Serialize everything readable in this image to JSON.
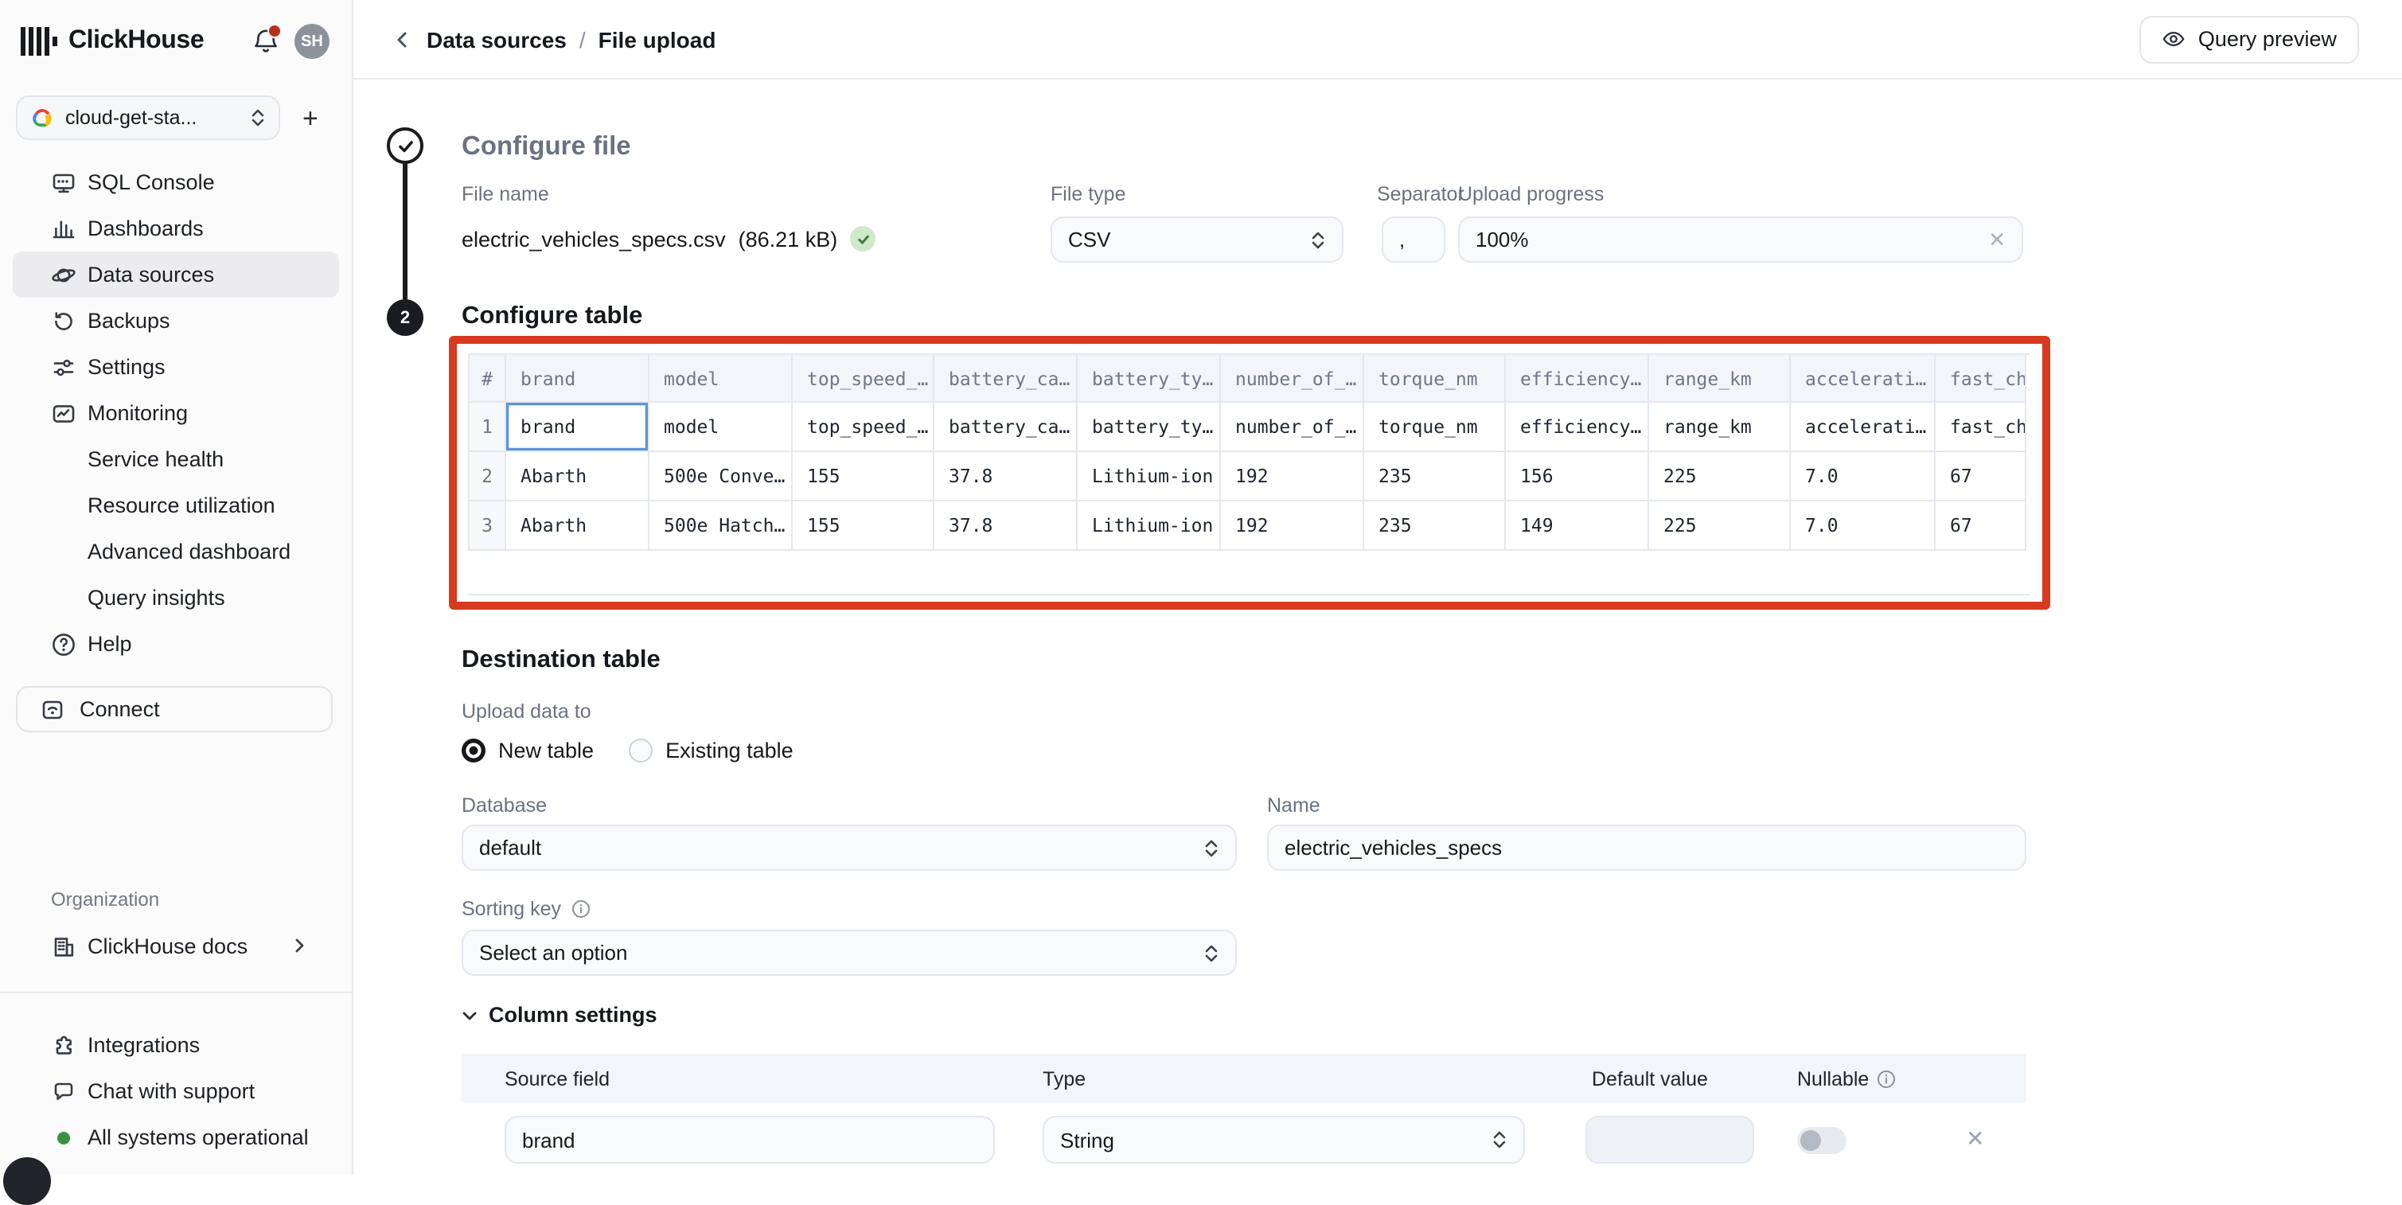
{
  "sidebar": {
    "brand": "ClickHouse",
    "avatar_initials": "SH",
    "org_selector": {
      "value": "cloud-get-sta...",
      "add_label": "+"
    },
    "nav": [
      {
        "label": "SQL Console",
        "icon": "sql-console"
      },
      {
        "label": "Dashboards",
        "icon": "dashboards"
      },
      {
        "label": "Data sources",
        "icon": "data-sources",
        "active": true
      },
      {
        "label": "Backups",
        "icon": "backups"
      },
      {
        "label": "Settings",
        "icon": "settings"
      },
      {
        "label": "Monitoring",
        "icon": "monitoring"
      },
      {
        "label": "Service health",
        "indent": true
      },
      {
        "label": "Resource utilization",
        "indent": true
      },
      {
        "label": "Advanced dashboard",
        "indent": true
      },
      {
        "label": "Query insights",
        "indent": true
      },
      {
        "label": "Help",
        "icon": "help"
      }
    ],
    "connect_label": "Connect",
    "organization_label": "Organization",
    "docs_label": "ClickHouse docs",
    "footer": [
      {
        "label": "Integrations",
        "icon": "integrations"
      },
      {
        "label": "Chat with support",
        "icon": "chat"
      },
      {
        "label": "All systems operational",
        "icon": "status-dot"
      }
    ]
  },
  "header": {
    "breadcrumb_parent": "Data sources",
    "breadcrumb_sep": "/",
    "breadcrumb_current": "File upload",
    "query_preview_label": "Query preview"
  },
  "configure_file": {
    "title": "Configure file",
    "file_name_label": "File name",
    "file_name_value": "electric_vehicles_specs.csv",
    "file_size": "(86.21 kB)",
    "file_type_label": "File type",
    "file_type_value": "CSV",
    "separator_label": "Separator",
    "separator_value": ",",
    "upload_progress_label": "Upload progress",
    "upload_progress_value": "100%"
  },
  "configure_table": {
    "step_number": "2",
    "title": "Configure table",
    "columns": [
      "#",
      "brand",
      "model",
      "top_speed_…",
      "battery_ca…",
      "battery_ty…",
      "number_of_…",
      "torque_nm",
      "efficiency…",
      "range_km",
      "accelerati…",
      "fast_cha"
    ],
    "rows": [
      [
        "1",
        "brand",
        "model",
        "top_speed_…",
        "battery_ca…",
        "battery_ty…",
        "number_of_…",
        "torque_nm",
        "efficiency…",
        "range_km",
        "accelerati…",
        "fast_cha"
      ],
      [
        "2",
        "Abarth",
        "500e Conve…",
        "155",
        "37.8",
        "Lithium-ion",
        "192",
        "235",
        "156",
        "225",
        "7.0",
        "67"
      ],
      [
        "3",
        "Abarth",
        "500e Hatch…",
        "155",
        "37.8",
        "Lithium-ion",
        "192",
        "235",
        "149",
        "225",
        "7.0",
        "67"
      ]
    ],
    "selected_cell": {
      "row": 0,
      "col": 1
    }
  },
  "destination": {
    "title": "Destination table",
    "upload_data_to_label": "Upload data to",
    "radio_new_label": "New table",
    "radio_existing_label": "Existing table",
    "database_label": "Database",
    "database_value": "default",
    "name_label": "Name",
    "name_value": "electric_vehicles_specs",
    "sorting_key_label": "Sorting key",
    "sorting_key_placeholder": "Select an option"
  },
  "column_settings": {
    "title": "Column settings",
    "headers": [
      "Source field",
      "Type",
      "Default value",
      "Nullable"
    ],
    "rows": [
      {
        "source_field": "brand",
        "type": "String",
        "default_value": "",
        "nullable": false
      }
    ]
  },
  "colors": {
    "highlight_border": "#d73a1e",
    "selected_cell_border": "#5b93d9",
    "success_green": "#3c7e3c",
    "status_green": "#3a9140",
    "notification_red": "#bb2d15"
  }
}
